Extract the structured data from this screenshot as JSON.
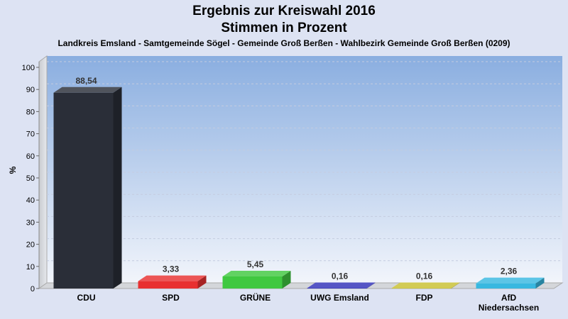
{
  "chart_data": {
    "type": "bar",
    "title_line1": "Ergebnis zur Kreiswahl 2016",
    "title_line2": "Stimmen in Prozent",
    "subtitle": "Landkreis Emsland - Samtgemeinde Sögel - Gemeinde Groß Berßen - Wahlbezirk Gemeinde Groß Berßen (0209)",
    "ylabel": "%",
    "ylim": [
      0,
      100
    ],
    "yticks": [
      0,
      10,
      20,
      30,
      40,
      50,
      60,
      70,
      80,
      90,
      100
    ],
    "categories": [
      [
        "CDU"
      ],
      [
        "SPD"
      ],
      [
        "GRÜNE"
      ],
      [
        "UWG Emsland"
      ],
      [
        "FDP"
      ],
      [
        "AfD",
        "Niedersachsen"
      ]
    ],
    "values": [
      88.54,
      3.33,
      5.45,
      0.16,
      0.16,
      2.36
    ],
    "value_labels": [
      "88,54",
      "3,33",
      "5,45",
      "0,16",
      "0,16",
      "2,36"
    ],
    "colors": [
      "#2a2e38",
      "#e83030",
      "#40c840",
      "#3030b8",
      "#c8c030",
      "#38b8e0"
    ],
    "grid": true
  }
}
